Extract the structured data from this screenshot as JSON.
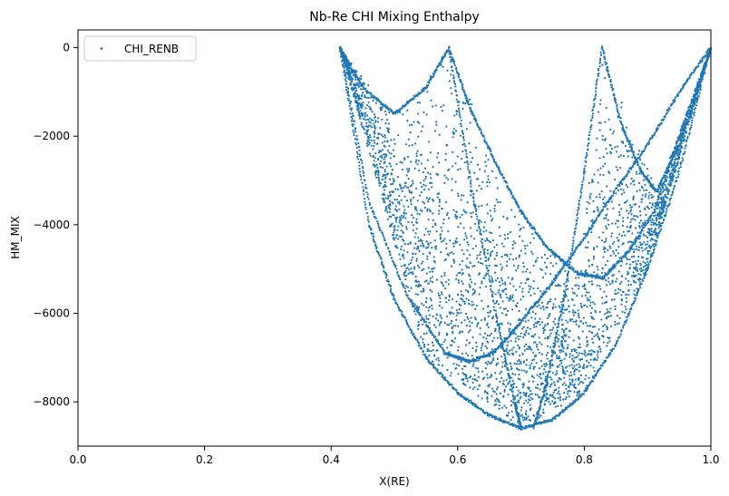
{
  "chart_data": {
    "type": "scatter",
    "title": "Nb-Re CHI Mixing Enthalpy",
    "xlabel": "X(RE)",
    "ylabel": "HM_MIX",
    "xlim": [
      0.0,
      1.0
    ],
    "ylim": [
      -9000,
      400
    ],
    "x_ticks": [
      0.0,
      0.2,
      0.4,
      0.6,
      0.8,
      1.0
    ],
    "x_tick_labels": [
      "0.0",
      "0.2",
      "0.4",
      "0.6",
      "0.8",
      "1.0"
    ],
    "y_ticks": [
      0,
      -2000,
      -4000,
      -6000,
      -8000
    ],
    "y_tick_labels": [
      "0",
      "−2000",
      "−4000",
      "−6000",
      "−8000"
    ],
    "grid": false,
    "legend_position": "top-left",
    "series": [
      {
        "name": "CHI_RENB",
        "color": "#1f77b4",
        "marker": "point",
        "curves": [
          {
            "x": [
              0.414,
              0.45,
              0.5,
              0.55,
              0.586
            ],
            "y": [
              0,
              -900,
              -1500,
              -900,
              0
            ]
          },
          {
            "x": [
              0.586,
              0.62,
              0.66,
              0.7,
              0.74,
              0.79,
              0.83,
              0.87,
              0.91,
              0.95,
              1.0
            ],
            "y": [
              0,
              -1400,
              -2600,
              -3700,
              -4500,
              -5100,
              -5200,
              -4600,
              -3700,
              -2000,
              0
            ]
          },
          {
            "x": [
              0.828,
              0.86,
              0.89,
              0.914,
              0.95,
              1.0
            ],
            "y": [
              0,
              -1800,
              -2800,
              -3250,
              -2200,
              0
            ]
          },
          {
            "x": [
              0.414,
              0.46,
              0.52,
              0.58,
              0.62,
              0.66,
              0.7,
              0.75,
              0.8,
              0.85,
              0.9,
              0.95,
              1.0
            ],
            "y": [
              0,
              -3500,
              -5600,
              -6900,
              -7100,
              -6850,
              -6200,
              -5300,
              -4300,
              -3200,
              -2200,
              -1000,
              0
            ]
          },
          {
            "x": [
              0.414,
              0.46,
              0.5,
              0.55,
              0.6,
              0.65,
              0.7,
              0.75,
              0.8,
              0.85,
              0.9,
              0.95,
              1.0
            ],
            "y": [
              0,
              -4000,
              -5700,
              -7000,
              -7800,
              -8300,
              -8600,
              -8400,
              -7800,
              -6700,
              -5000,
              -2800,
              0
            ]
          },
          {
            "x": [
              0.586,
              0.62,
              0.66,
              0.69,
              0.7
            ],
            "y": [
              0,
              -3000,
              -6000,
              -8000,
              -8600
            ]
          },
          {
            "x": [
              0.828,
              0.8,
              0.77,
              0.74,
              0.72
            ],
            "y": [
              0,
              -2800,
              -5500,
              -7600,
              -8600
            ]
          }
        ],
        "scatter_region": {
          "x_range": [
            0.414,
            1.0
          ],
          "y_top": [
            [
              0.414,
              0
            ],
            [
              0.5,
              -1500
            ],
            [
              0.586,
              0
            ],
            [
              0.7,
              -3700
            ],
            [
              0.79,
              -5100
            ],
            [
              0.828,
              0
            ],
            [
              0.914,
              -3250
            ],
            [
              1.0,
              0
            ]
          ],
          "y_bottom": [
            [
              0.414,
              0
            ],
            [
              0.55,
              -7000
            ],
            [
              0.7,
              -8600
            ],
            [
              0.8,
              -7800
            ],
            [
              0.9,
              -5000
            ],
            [
              1.0,
              0
            ]
          ],
          "point_count": 3600
        }
      }
    ]
  }
}
